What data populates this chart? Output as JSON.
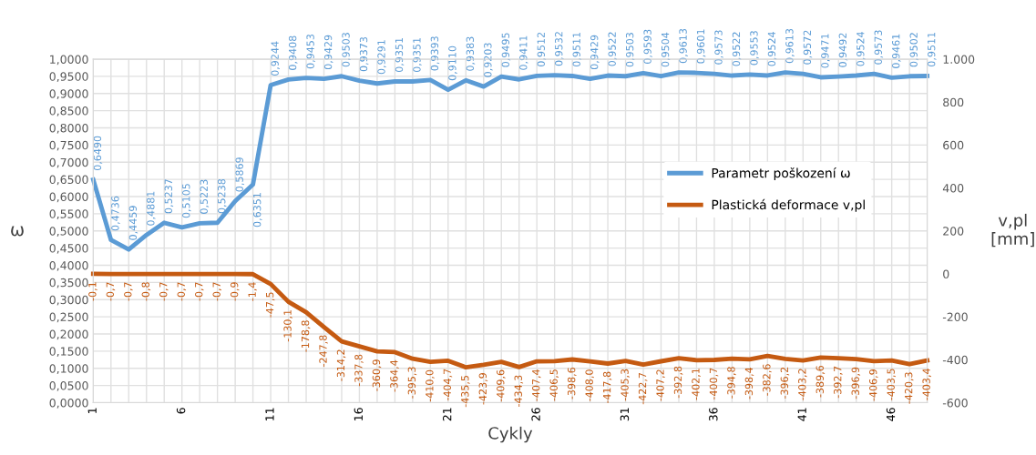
{
  "chart_data": {
    "type": "line",
    "xlabel": "Cykly",
    "ylabel": "ω",
    "y2label": "v,pl\n[mm]",
    "categories": [
      "1",
      null,
      null,
      null,
      null,
      "6",
      null,
      null,
      null,
      null,
      "11",
      null,
      null,
      null,
      null,
      "16",
      null,
      null,
      null,
      null,
      "21",
      null,
      null,
      null,
      null,
      "26",
      null,
      null,
      null,
      null,
      "31",
      null,
      null,
      null,
      null,
      "36",
      null,
      null,
      null,
      null,
      "41",
      null,
      null,
      null,
      null,
      "46",
      null,
      null
    ],
    "series": [
      {
        "name": "Parametr poškození ω",
        "color": "#5b9bd5",
        "value_labels": [
          "0,6490",
          "0,4736",
          "0,4459",
          "0,4881",
          "0,5237",
          "0,5105",
          "0,5223",
          "0,5238",
          "0,5869",
          "0,6351",
          "0,9244",
          "0,9408",
          "0,9453",
          "0,9429",
          "0,9503",
          "0,9373",
          "0,9291",
          "0,9351",
          "0,9351",
          "0,9393",
          "0,9110",
          "0,9383",
          "0,9203",
          "0,9495",
          "0,9411",
          "0,9512",
          "0,9532",
          "0,9511",
          "0,9429",
          "0,9522",
          "0,9503",
          "0,9593",
          "0,9504",
          "0,9613",
          "0,9601",
          "0,9573",
          "0,9522",
          "0,9553",
          "0,9524",
          "0,9613",
          "0,9572",
          "0,9471",
          "0,9492",
          "0,9524",
          "0,9573",
          "0,9461",
          "0,9502",
          "0,9511"
        ],
        "values": [
          0.649,
          0.4736,
          0.4459,
          0.4881,
          0.5237,
          0.5105,
          0.5223,
          0.5238,
          0.5869,
          0.6351,
          0.9244,
          0.9408,
          0.9453,
          0.9429,
          0.9503,
          0.9373,
          0.9291,
          0.9351,
          0.9351,
          0.9393,
          0.911,
          0.9383,
          0.9203,
          0.9495,
          0.9411,
          0.9512,
          0.9532,
          0.9511,
          0.9429,
          0.9522,
          0.9503,
          0.9593,
          0.9504,
          0.9613,
          0.9601,
          0.9573,
          0.9522,
          0.9553,
          0.9524,
          0.9613,
          0.9572,
          0.9471,
          0.9492,
          0.9524,
          0.9573,
          0.9461,
          0.9502,
          0.9511
        ]
      },
      {
        "name": "Plastická deformace v,pl",
        "color": "#c55a11",
        "axis": "y2",
        "value_labels": [
          "-0,1",
          "-0,7",
          "-0,7",
          "-0,8",
          "-0,7",
          "-0,7",
          "-0,7",
          "-0,7",
          "-0,9",
          "-1,4",
          "-47,5",
          "-130,1",
          "-178,8",
          "-247,8",
          "-314,2",
          "-337,8",
          "-360,9",
          "-364,4",
          "-395,3",
          "-410,0",
          "-404,7",
          "-435,5",
          "-423,9",
          "-409,6",
          "-434,3",
          "-407,4",
          "-406,5",
          "-398,6",
          "-408,0",
          "-417,8",
          "-405,3",
          "-422,7",
          "-407,2",
          "-392,8",
          "-402,1",
          "-400,7",
          "-394,8",
          "-398,4",
          "-382,6",
          "-396,2",
          "-403,2",
          "-389,6",
          "-392,7",
          "-396,9",
          "-406,9",
          "-403,5",
          "-420,3",
          "-403,4"
        ],
        "values": [
          -0.1,
          -0.7,
          -0.7,
          -0.8,
          -0.7,
          -0.7,
          -0.7,
          -0.7,
          -0.9,
          -1.4,
          -47.5,
          -130.1,
          -178.8,
          -247.8,
          -314.2,
          -337.8,
          -360.9,
          -364.4,
          -395.3,
          -410.0,
          -404.7,
          -435.5,
          -423.9,
          -409.6,
          -434.3,
          -407.4,
          -406.5,
          -398.6,
          -408.0,
          -417.8,
          -405.3,
          -422.7,
          -407.2,
          -392.8,
          -402.1,
          -400.7,
          -394.8,
          -398.4,
          -382.6,
          -396.2,
          -403.2,
          -389.6,
          -392.7,
          -396.9,
          -406.9,
          -403.5,
          -420.3,
          -403.4
        ]
      }
    ],
    "ylim": [
      0,
      1
    ],
    "yticks": [
      {
        "value": 0,
        "label": "0,0000"
      },
      {
        "value": 0.05,
        "label": "0,0500"
      },
      {
        "value": 0.1,
        "label": "0,1000"
      },
      {
        "value": 0.15,
        "label": "0,1500"
      },
      {
        "value": 0.2,
        "label": "0,2000"
      },
      {
        "value": 0.25,
        "label": "0,2500"
      },
      {
        "value": 0.3,
        "label": "0,3000"
      },
      {
        "value": 0.35,
        "label": "0,3500"
      },
      {
        "value": 0.4,
        "label": "0,4000"
      },
      {
        "value": 0.45,
        "label": "0,4500"
      },
      {
        "value": 0.5,
        "label": "0,5000"
      },
      {
        "value": 0.55,
        "label": "0,5500"
      },
      {
        "value": 0.6,
        "label": "0,6000"
      },
      {
        "value": 0.65,
        "label": "0,6500"
      },
      {
        "value": 0.7,
        "label": "0,7000"
      },
      {
        "value": 0.75,
        "label": "0,7500"
      },
      {
        "value": 0.8,
        "label": "0,8000"
      },
      {
        "value": 0.85,
        "label": "0,8500"
      },
      {
        "value": 0.9,
        "label": "0,9000"
      },
      {
        "value": 0.95,
        "label": "0,9500"
      },
      {
        "value": 1,
        "label": "1,0000"
      }
    ],
    "y2lim": [
      -600,
      1000
    ],
    "y2ticks": [
      -600,
      -400,
      -200,
      0,
      200,
      400,
      600,
      800,
      {
        "value": 1000,
        "label": "1.000"
      }
    ],
    "grid": true,
    "legend": "right",
    "marker": "none",
    "line_style": "solid"
  }
}
